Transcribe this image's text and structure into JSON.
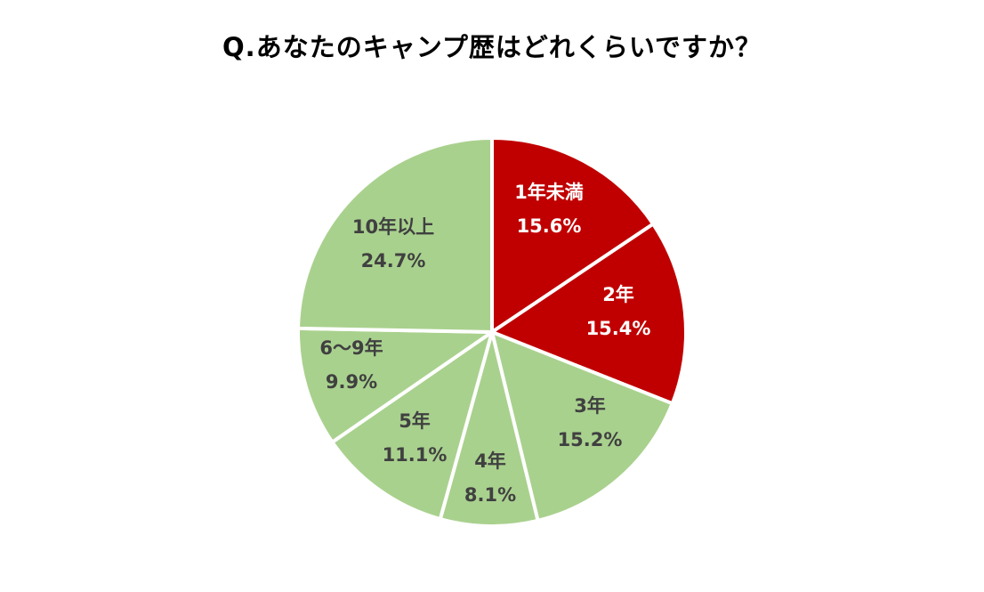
{
  "chart_data": {
    "type": "pie",
    "title": "Q.あなたのキャンプ歴はどれくらいですか？",
    "start": "12 o'clock",
    "direction": "clockwise",
    "slices": [
      {
        "label": "1年未満",
        "value": 15.6,
        "value_text": "15.6%",
        "color": "#c00000",
        "text_color": "#ffffff"
      },
      {
        "label": "2年",
        "value": 15.4,
        "value_text": "15.4%",
        "color": "#c00000",
        "text_color": "#ffffff"
      },
      {
        "label": "3年",
        "value": 15.2,
        "value_text": "15.2%",
        "color": "#a9d18e",
        "text_color": "#404040"
      },
      {
        "label": "4年",
        "value": 8.1,
        "value_text": "8.1%",
        "color": "#a9d18e",
        "text_color": "#404040"
      },
      {
        "label": "5年",
        "value": 11.1,
        "value_text": "11.1%",
        "color": "#a9d18e",
        "text_color": "#404040"
      },
      {
        "label": "6～9年",
        "value": 9.9,
        "value_text": "9.9%",
        "color": "#a9d18e",
        "text_color": "#404040"
      },
      {
        "label": "10年以上",
        "value": 24.7,
        "value_text": "24.7%",
        "color": "#a9d18e",
        "text_color": "#404040"
      }
    ]
  }
}
